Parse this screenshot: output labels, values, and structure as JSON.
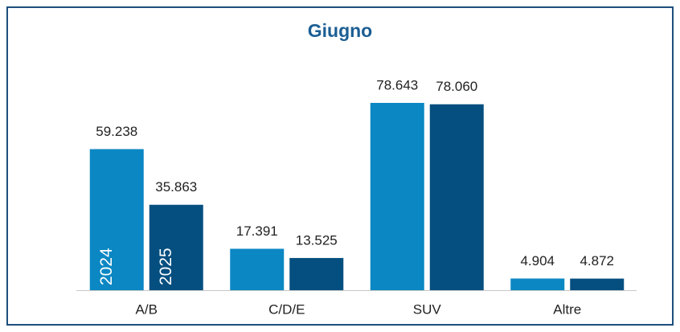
{
  "chart_data": {
    "type": "bar",
    "title": "Giugno",
    "categories": [
      "A/B",
      "C/D/E",
      "SUV",
      "Altre"
    ],
    "series": [
      {
        "name": "2024",
        "color": "#0b87c3",
        "values": [
          59238,
          17391,
          78643,
          4904
        ],
        "value_labels": [
          "59.238",
          "17.391",
          "78.643",
          "4.904"
        ]
      },
      {
        "name": "2025",
        "color": "#054f80",
        "values": [
          35863,
          13525,
          78060,
          4872
        ],
        "value_labels": [
          "35.863",
          "13.525",
          "78.060",
          "4.872"
        ]
      }
    ]
  }
}
